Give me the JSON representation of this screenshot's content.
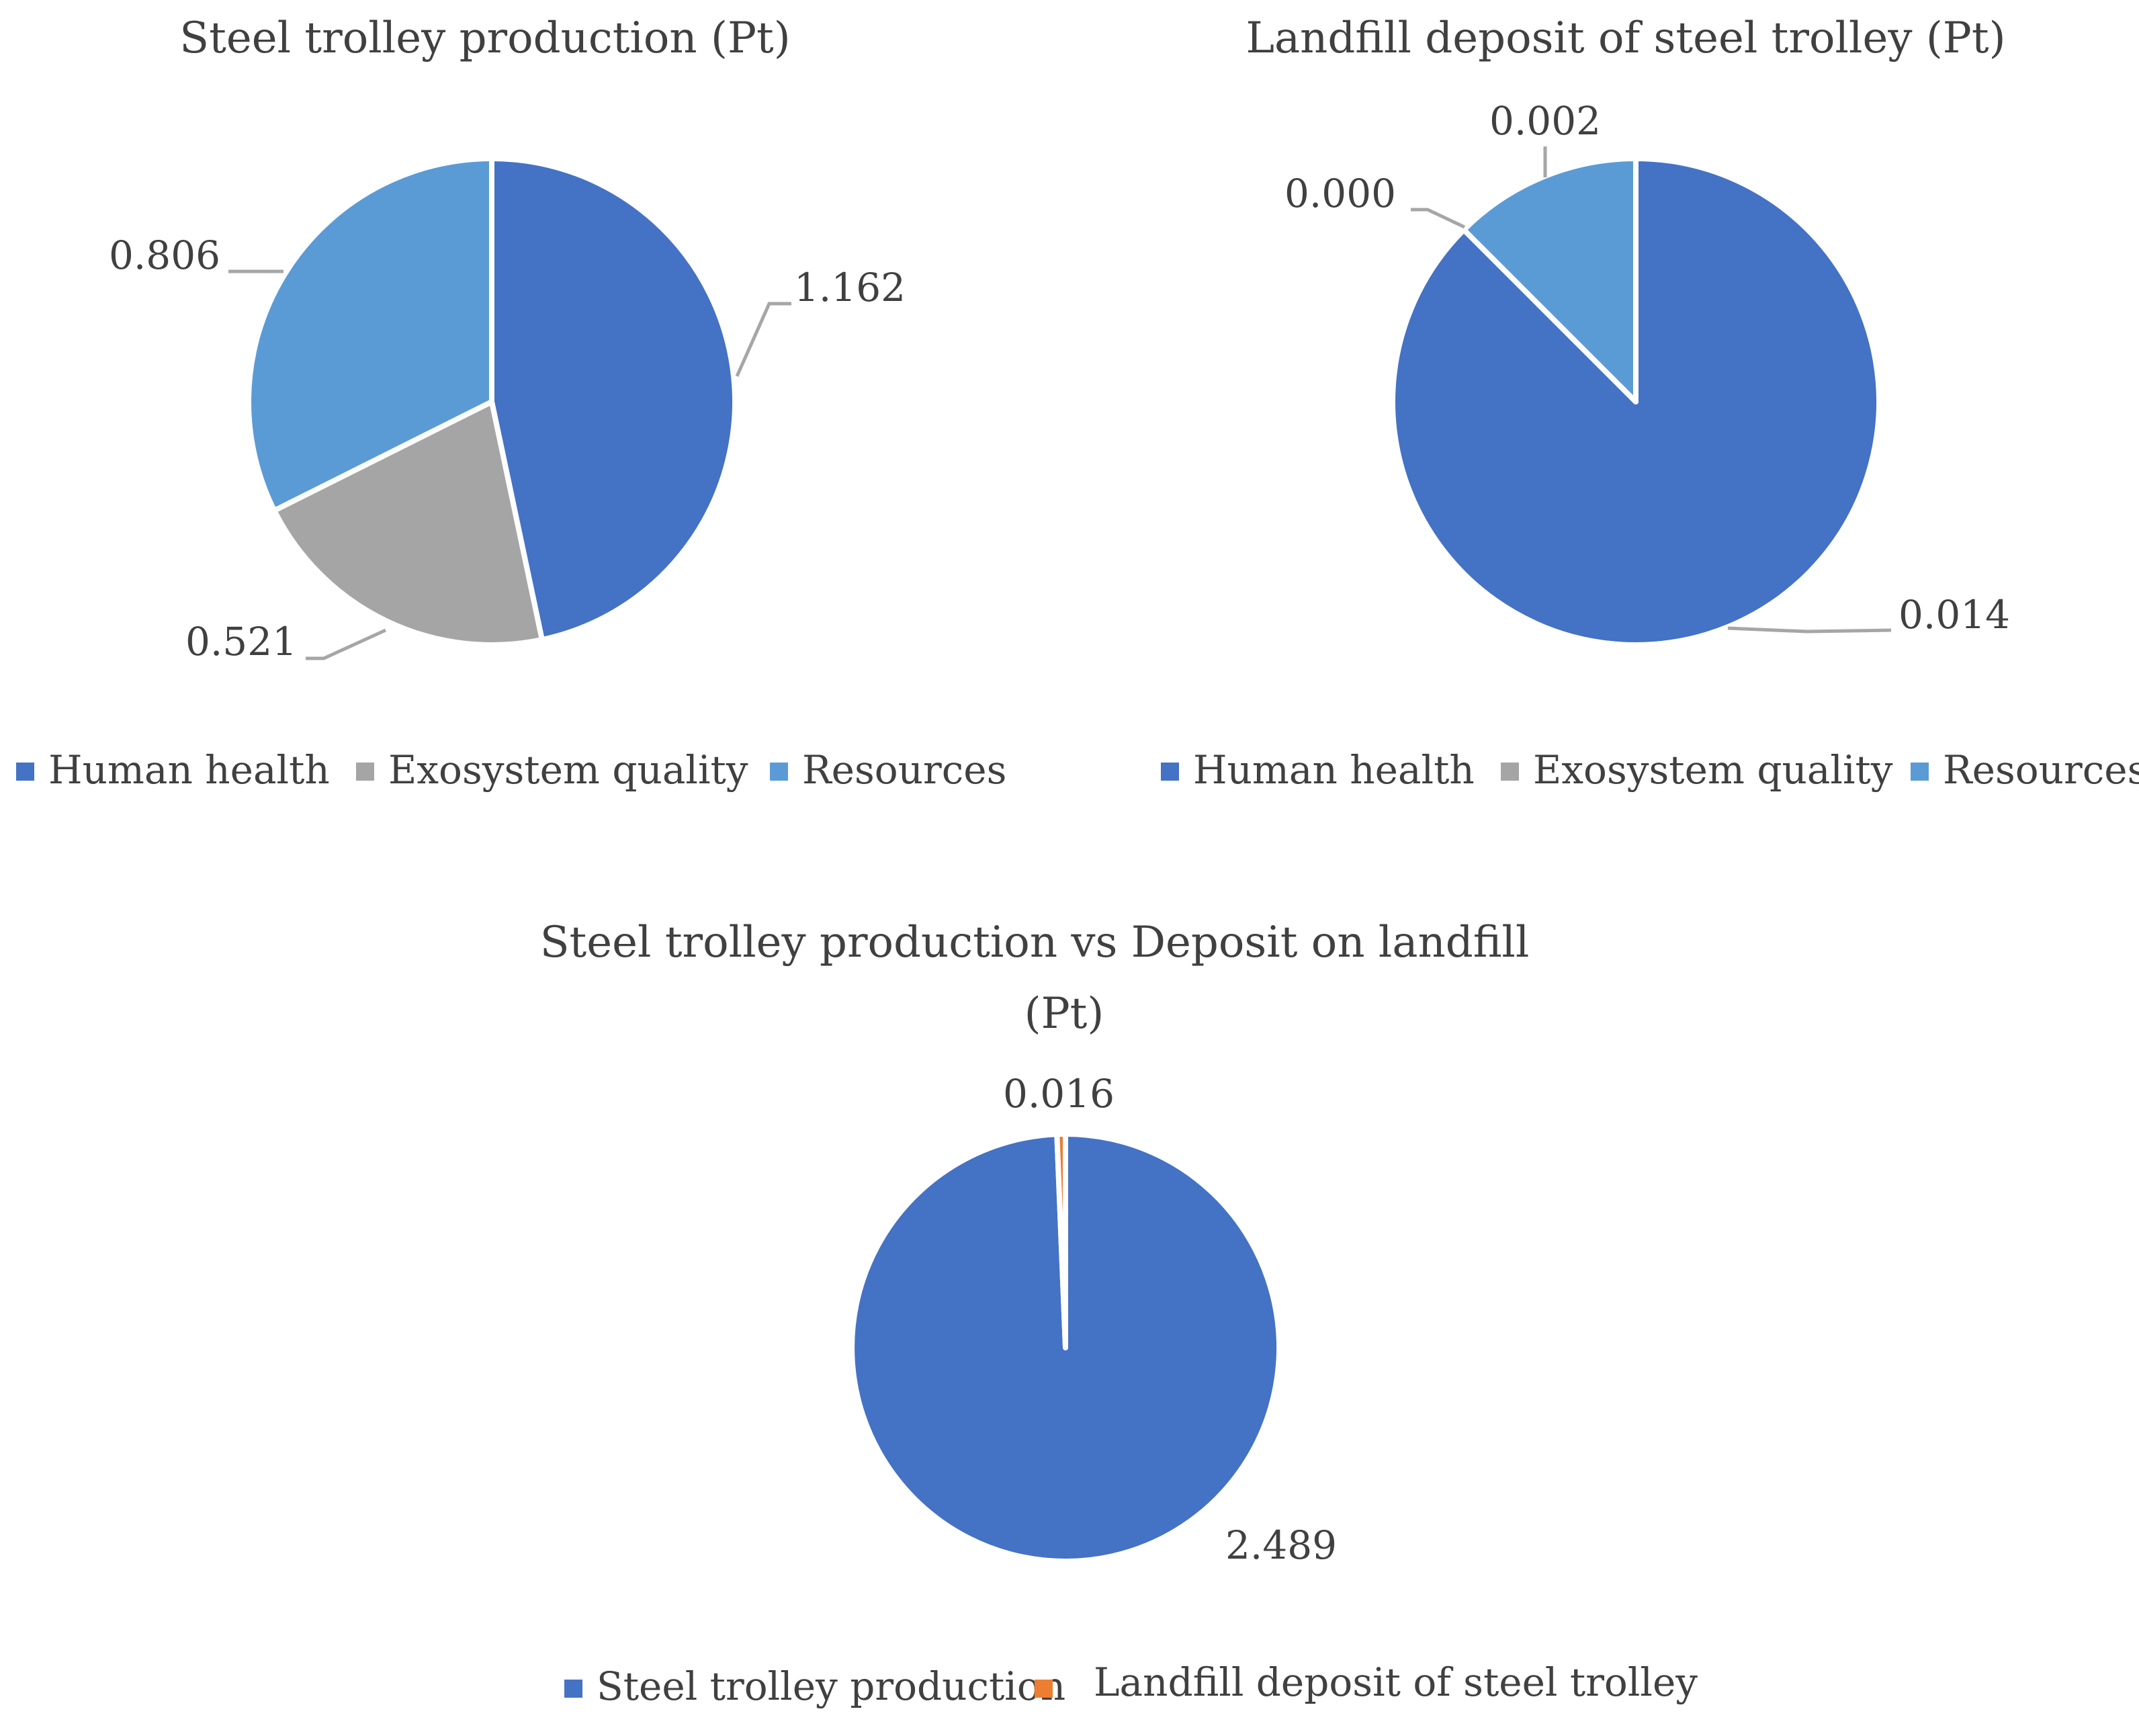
{
  "chart_data": [
    {
      "type": "pie",
      "title": "Steel trolley production (Pt)",
      "categories": [
        "Human health",
        "Exosystem quality",
        "Resources"
      ],
      "values": [
        1.162,
        0.521,
        0.806
      ],
      "labels": [
        "1.162",
        "0.521",
        "0.806"
      ],
      "colors": [
        "#4472C4",
        "#A5A5A5",
        "#5B9BD5"
      ],
      "legend": {
        "position": "bottom",
        "items": [
          "Human health",
          "Exosystem quality",
          "Resources"
        ]
      }
    },
    {
      "type": "pie",
      "title": "Landfill deposit of steel trolley (Pt)",
      "categories": [
        "Human health",
        "Exosystem quality",
        "Resources"
      ],
      "values": [
        0.014,
        0.0,
        0.002
      ],
      "labels": [
        "0.014",
        "0.000",
        "0.002"
      ],
      "colors": [
        "#4472C4",
        "#A5A5A5",
        "#5B9BD5"
      ],
      "legend": {
        "position": "bottom",
        "items": [
          "Human health",
          "Exosystem quality",
          "Resources"
        ]
      }
    },
    {
      "type": "pie",
      "title_lines": [
        "Steel trolley production vs Deposit on landfill",
        "(Pt)"
      ],
      "categories": [
        "Steel trolley production",
        "Landfill deposit of steel trolley"
      ],
      "values": [
        2.489,
        0.016
      ],
      "labels": [
        "2.489",
        "0.016"
      ],
      "colors": [
        "#4472C4",
        "#ED7D31"
      ],
      "legend": {
        "position": "bottom",
        "items": [
          "Steel trolley production",
          "Landfill deposit of steel trolley"
        ]
      }
    }
  ]
}
